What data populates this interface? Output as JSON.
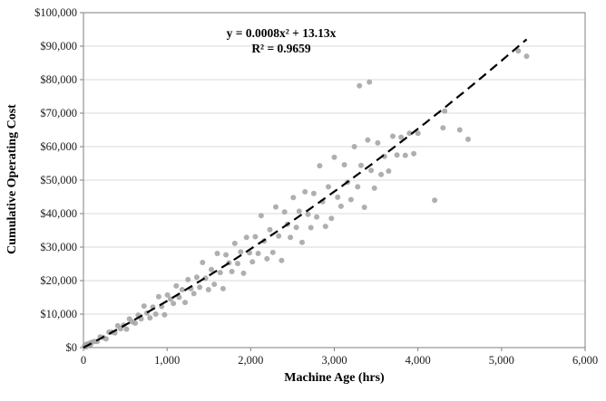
{
  "chart_data": {
    "type": "scatter",
    "title": "",
    "xlabel": "Machine Age (hrs)",
    "ylabel": "Cumulative  Operating  Cost",
    "xlim": [
      0,
      6000
    ],
    "ylim": [
      0,
      100000
    ],
    "grid": "horizontal",
    "legend": "none",
    "colors": {
      "point": "#a6a6a6",
      "grid": "#d9d9d9",
      "frame": "#7f7f7f"
    },
    "x_ticks": [
      {
        "value": 0,
        "label": "0"
      },
      {
        "value": 1000,
        "label": "1,000"
      },
      {
        "value": 2000,
        "label": "2,000"
      },
      {
        "value": 3000,
        "label": "3,000"
      },
      {
        "value": 4000,
        "label": "4,000"
      },
      {
        "value": 5000,
        "label": "5,000"
      },
      {
        "value": 6000,
        "label": "6,000"
      }
    ],
    "y_ticks": [
      {
        "value": 0,
        "label": "$0"
      },
      {
        "value": 10000,
        "label": "$10,000"
      },
      {
        "value": 20000,
        "label": "$20,000"
      },
      {
        "value": 30000,
        "label": "$30,000"
      },
      {
        "value": 40000,
        "label": "$40,000"
      },
      {
        "value": 50000,
        "label": "$50,000"
      },
      {
        "value": 60000,
        "label": "$60,000"
      },
      {
        "value": 70000,
        "label": "$70,000"
      },
      {
        "value": 80000,
        "label": "$80,000"
      },
      {
        "value": 90000,
        "label": "$90,000"
      },
      {
        "value": 100000,
        "label": "$100,000"
      }
    ],
    "annotation": {
      "line1": "y = 0.0008x² + 13.13x",
      "line2": "R² = 0.9659"
    },
    "trendline": {
      "type": "polynomial",
      "a": 0.0008,
      "b": 13.13,
      "x_start": 0,
      "x_end": 5300,
      "style": "dashed",
      "color": "#000000"
    },
    "points": [
      [
        10,
        300
      ],
      [
        20,
        700
      ],
      [
        30,
        200
      ],
      [
        40,
        1000
      ],
      [
        55,
        600
      ],
      [
        70,
        1300
      ],
      [
        85,
        900
      ],
      [
        100,
        1600
      ],
      [
        130,
        1800
      ],
      [
        165,
        1800
      ],
      [
        200,
        3200
      ],
      [
        235,
        3000
      ],
      [
        270,
        2600
      ],
      [
        305,
        4600
      ],
      [
        340,
        4600
      ],
      [
        375,
        4400
      ],
      [
        410,
        6500
      ],
      [
        445,
        5600
      ],
      [
        480,
        6700
      ],
      [
        515,
        5500
      ],
      [
        550,
        8600
      ],
      [
        585,
        7700
      ],
      [
        620,
        7300
      ],
      [
        655,
        9700
      ],
      [
        690,
        8600
      ],
      [
        725,
        12400
      ],
      [
        760,
        10300
      ],
      [
        795,
        8900
      ],
      [
        830,
        12100
      ],
      [
        865,
        10000
      ],
      [
        900,
        15200
      ],
      [
        935,
        12300
      ],
      [
        970,
        9800
      ],
      [
        1005,
        15700
      ],
      [
        1040,
        14500
      ],
      [
        1075,
        13200
      ],
      [
        1110,
        18400
      ],
      [
        1145,
        15000
      ],
      [
        1180,
        17300
      ],
      [
        1215,
        13500
      ],
      [
        1250,
        20300
      ],
      [
        1285,
        17600
      ],
      [
        1320,
        16100
      ],
      [
        1355,
        21000
      ],
      [
        1390,
        18000
      ],
      [
        1425,
        25400
      ],
      [
        1460,
        20700
      ],
      [
        1495,
        17300
      ],
      [
        1530,
        23300
      ],
      [
        1565,
        18900
      ],
      [
        1600,
        28100
      ],
      [
        1635,
        22400
      ],
      [
        1670,
        17600
      ],
      [
        1705,
        27700
      ],
      [
        1740,
        25300
      ],
      [
        1775,
        22700
      ],
      [
        1810,
        31100
      ],
      [
        1845,
        25100
      ],
      [
        1880,
        28600
      ],
      [
        1915,
        22200
      ],
      [
        1950,
        32900
      ],
      [
        1985,
        28300
      ],
      [
        2020,
        25600
      ],
      [
        2055,
        33100
      ],
      [
        2090,
        28100
      ],
      [
        2125,
        39400
      ],
      [
        2160,
        31800
      ],
      [
        2195,
        26500
      ],
      [
        2230,
        35200
      ],
      [
        2265,
        28400
      ],
      [
        2300,
        42000
      ],
      [
        2335,
        33300
      ],
      [
        2370,
        26000
      ],
      [
        2405,
        40500
      ],
      [
        2440,
        36800
      ],
      [
        2475,
        32900
      ],
      [
        2510,
        44800
      ],
      [
        2545,
        35900
      ],
      [
        2580,
        40700
      ],
      [
        2615,
        31400
      ],
      [
        2650,
        46500
      ],
      [
        2685,
        39800
      ],
      [
        2720,
        35800
      ],
      [
        2755,
        46000
      ],
      [
        2790,
        39000
      ],
      [
        2825,
        54300
      ],
      [
        2860,
        43600
      ],
      [
        2895,
        36200
      ],
      [
        2930,
        48000
      ],
      [
        2965,
        38600
      ],
      [
        3000,
        56800
      ],
      [
        3040,
        44900
      ],
      [
        3080,
        42200
      ],
      [
        3120,
        54600
      ],
      [
        3160,
        49400
      ],
      [
        3200,
        44200
      ],
      [
        3240,
        60000
      ],
      [
        3280,
        48000
      ],
      [
        3320,
        54400
      ],
      [
        3360,
        41900
      ],
      [
        3400,
        62000
      ],
      [
        3440,
        52900
      ],
      [
        3480,
        47600
      ],
      [
        3520,
        61100
      ],
      [
        3560,
        51700
      ],
      [
        3600,
        57100
      ],
      [
        3650,
        52700
      ],
      [
        3700,
        63100
      ],
      [
        3750,
        57500
      ],
      [
        3800,
        62800
      ],
      [
        3850,
        57400
      ],
      [
        3900,
        64000
      ],
      [
        3950,
        57900
      ],
      [
        4000,
        64000
      ],
      [
        3300,
        78200
      ],
      [
        3420,
        79300
      ],
      [
        4200,
        44000
      ],
      [
        4300,
        65600
      ],
      [
        4320,
        70600
      ],
      [
        4500,
        65000
      ],
      [
        4600,
        62200
      ],
      [
        5200,
        88600
      ],
      [
        5300,
        87000
      ]
    ]
  }
}
